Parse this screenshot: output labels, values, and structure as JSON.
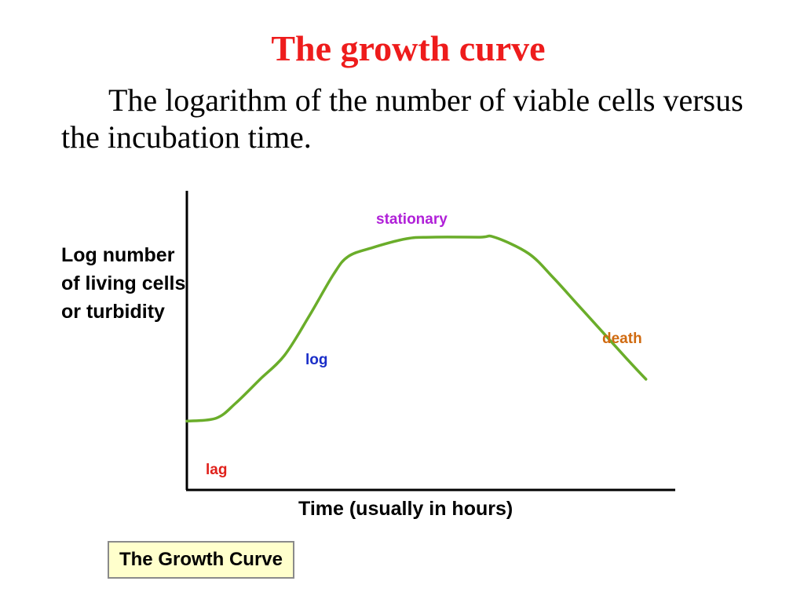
{
  "slide": {
    "title": "The growth curve",
    "description": "The logarithm of the number of viable cells versus the incubation time."
  },
  "chart_data": {
    "type": "line",
    "title": "",
    "ylabel": "Log number of living cells or turbidity",
    "ylabel_lines": [
      "Log number",
      "of living cells",
      "or turbidity"
    ],
    "xlabel": "Time (usually in hours)",
    "x_ticks": false,
    "y_ticks": false,
    "grid": false,
    "legend": "none",
    "series": [
      {
        "color": "#6aad2a",
        "points": [
          {
            "x": 0.0,
            "y": 0.23
          },
          {
            "x": 0.06,
            "y": 0.24
          },
          {
            "x": 0.1,
            "y": 0.29
          },
          {
            "x": 0.15,
            "y": 0.37
          },
          {
            "x": 0.2,
            "y": 0.45
          },
          {
            "x": 0.25,
            "y": 0.58
          },
          {
            "x": 0.3,
            "y": 0.72
          },
          {
            "x": 0.33,
            "y": 0.78
          },
          {
            "x": 0.38,
            "y": 0.81
          },
          {
            "x": 0.45,
            "y": 0.84
          },
          {
            "x": 0.5,
            "y": 0.845
          },
          {
            "x": 0.6,
            "y": 0.845
          },
          {
            "x": 0.63,
            "y": 0.845
          },
          {
            "x": 0.7,
            "y": 0.79
          },
          {
            "x": 0.75,
            "y": 0.71
          },
          {
            "x": 0.8,
            "y": 0.62
          },
          {
            "x": 0.85,
            "y": 0.53
          },
          {
            "x": 0.9,
            "y": 0.44
          },
          {
            "x": 0.94,
            "y": 0.37
          }
        ]
      }
    ],
    "annotations": [
      {
        "text": "lag",
        "color": "#e0201a"
      },
      {
        "text": "log",
        "color": "#1a2ec8"
      },
      {
        "text": "stationary",
        "color": "#b020d8"
      },
      {
        "text": "death",
        "color": "#d06a10"
      }
    ],
    "caption": "The Growth Curve",
    "colors": {
      "axis": "#000000",
      "curve": "#6aad2a",
      "caption_background": "#ffffcc",
      "caption_border": "#8a8a8a",
      "title": "#ee1c1c"
    }
  }
}
